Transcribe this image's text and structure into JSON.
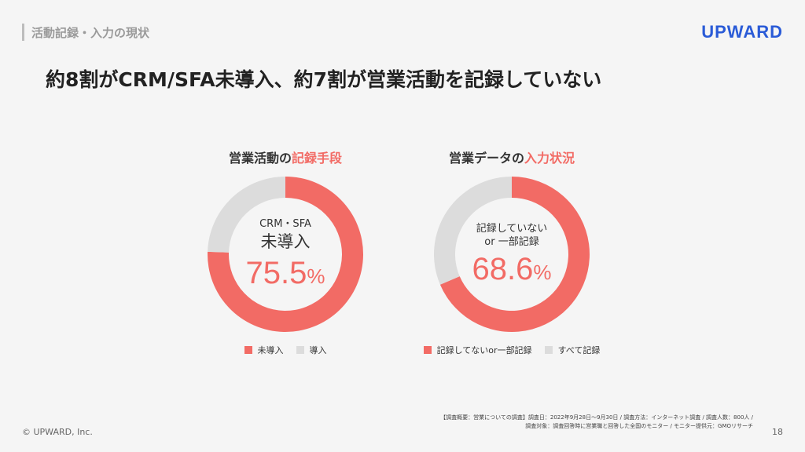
{
  "header": {
    "section_label": "活動記録・入力の現状",
    "logo": "UPWARD"
  },
  "headline": "約8割がCRM/SFA未導入、約7割が営業活動を記録していない",
  "charts": [
    {
      "title_prefix": "営業活動の",
      "title_highlight": "記録手段",
      "center_line1": "CRM・SFA",
      "center_line2": "未導入",
      "percent_value": "75.5",
      "percent_unit": "%",
      "legend": [
        "未導入",
        "導入"
      ]
    },
    {
      "title_prefix": "営業データの",
      "title_highlight": "入力状況",
      "center_line1": "記録していない",
      "center_line2": "or 一部記録",
      "percent_value": "68.6",
      "percent_unit": "%",
      "legend": [
        "記録してないor一部記録",
        "すべて記録"
      ]
    }
  ],
  "colors": {
    "primary": "#f26b65",
    "secondary": "#dcdcdc",
    "logo": "#2a5bd7"
  },
  "chart_data": [
    {
      "type": "pie",
      "title": "営業活動の記録手段",
      "categories": [
        "未導入",
        "導入"
      ],
      "values": [
        75.5,
        24.5
      ]
    },
    {
      "type": "pie",
      "title": "営業データの入力状況",
      "categories": [
        "記録してないor一部記録",
        "すべて記録"
      ],
      "values": [
        68.6,
        31.4
      ]
    }
  ],
  "footnote": {
    "line1": "【調査概要：営業についての調査】調査日：2022年9月28日〜9月30日 / 調査方法：インターネット調査 / 調査人数：800人 /",
    "line2": "調査対象：調査回答時に営業職と回答した全国のモニター / モニター提供元：GMOリサーチ"
  },
  "footer": {
    "copyright": "© UPWARD, Inc.",
    "page_number": "18"
  }
}
